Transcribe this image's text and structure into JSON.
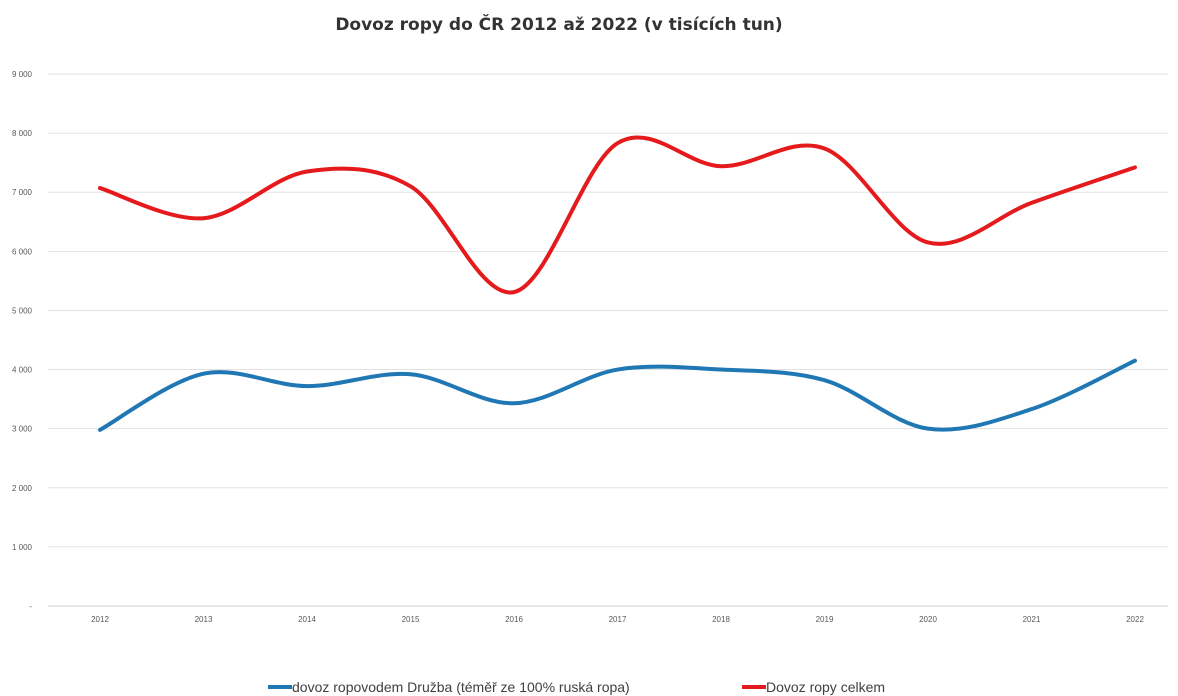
{
  "chart_data": {
    "type": "line",
    "title": "Dovoz ropy do ČR 2012 až 2022 (v  tisících tun)",
    "xlabel": "",
    "ylabel": "",
    "categories": [
      "2012",
      "2013",
      "2014",
      "2015",
      "2016",
      "2017",
      "2018",
      "2019",
      "2020",
      "2021",
      "2022"
    ],
    "ylim": [
      0,
      9000
    ],
    "y_ticks": [
      0,
      1000,
      2000,
      3000,
      4000,
      5000,
      6000,
      7000,
      8000,
      9000
    ],
    "y_tick_labels": [
      "-",
      "1 000",
      "2 000",
      "3 000",
      "4 000",
      "5 000",
      "6 000",
      "7 000",
      "8 000",
      "9 000"
    ],
    "grid": true,
    "legend_position": "bottom",
    "series": [
      {
        "name": "dovoz ropovodem Družba (téměř ze 100% ruská ropa)",
        "color": "#1f77b4",
        "values": [
          2980,
          3930,
          3720,
          3920,
          3430,
          4000,
          4000,
          3820,
          3000,
          3330,
          4150
        ]
      },
      {
        "name": "Dovoz ropy celkem",
        "color": "#e41a1c",
        "values": [
          7070,
          6560,
          7350,
          7100,
          5310,
          7830,
          7440,
          7740,
          6150,
          6820,
          7420
        ]
      }
    ]
  }
}
